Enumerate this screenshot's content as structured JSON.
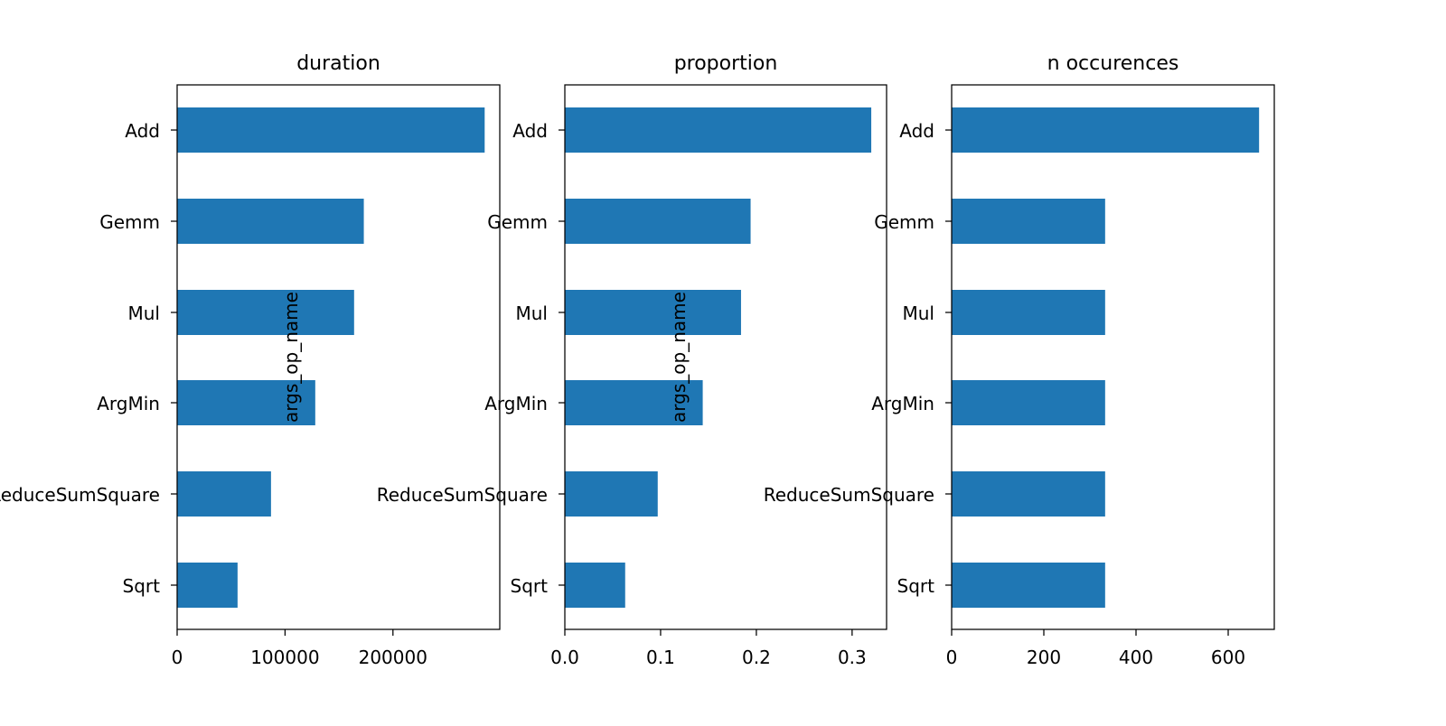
{
  "chart_data": [
    {
      "type": "bar",
      "orientation": "horizontal",
      "title": "duration",
      "xlabel": "",
      "ylabel": "args_op_name",
      "categories": [
        "Add",
        "Gemm",
        "Mul",
        "ArgMin",
        "ReduceSumSquare",
        "Sqrt"
      ],
      "values": [
        285000,
        173000,
        164000,
        128000,
        87000,
        56000
      ],
      "xlim": [
        0,
        299000
      ],
      "xticks": [
        0,
        100000,
        200000
      ],
      "xtick_labels": [
        "0",
        "100000",
        "200000"
      ],
      "color": "#1f77b4",
      "grid": false
    },
    {
      "type": "bar",
      "orientation": "horizontal",
      "title": "proportion",
      "xlabel": "",
      "ylabel": "args_op_name",
      "categories": [
        "Add",
        "Gemm",
        "Mul",
        "ArgMin",
        "ReduceSumSquare",
        "Sqrt"
      ],
      "values": [
        0.32,
        0.194,
        0.184,
        0.144,
        0.097,
        0.063
      ],
      "xlim": [
        0,
        0.336
      ],
      "xticks": [
        0.0,
        0.1,
        0.2,
        0.3
      ],
      "xtick_labels": [
        "0.0",
        "0.1",
        "0.2",
        "0.3"
      ],
      "color": "#1f77b4",
      "grid": false
    },
    {
      "type": "bar",
      "orientation": "horizontal",
      "title": "n occurences",
      "xlabel": "",
      "ylabel": "",
      "categories": [
        "Add",
        "Gemm",
        "Mul",
        "ArgMin",
        "ReduceSumSquare",
        "Sqrt"
      ],
      "values": [
        667,
        333,
        333,
        333,
        333,
        333
      ],
      "xlim": [
        0,
        700
      ],
      "xticks": [
        0,
        200,
        400,
        600
      ],
      "xtick_labels": [
        "0",
        "200",
        "400",
        "600"
      ],
      "color": "#1f77b4",
      "grid": false
    }
  ]
}
